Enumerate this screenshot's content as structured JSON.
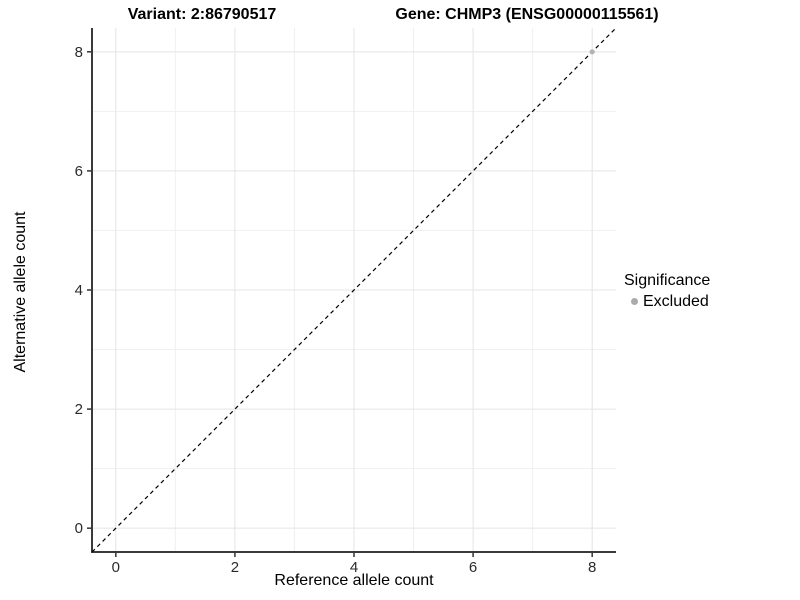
{
  "titles": {
    "variant": "Variant: 2:86790517",
    "gene": "Gene: CHMP3 (ENSG00000115561)"
  },
  "chart_data": {
    "type": "scatter",
    "title_left": "Variant: 2:86790517",
    "title_right": "Gene: CHMP3 (ENSG00000115561)",
    "xlabel": "Reference allele count",
    "ylabel": "Alternative allele count",
    "xlim": [
      -0.4,
      8.4
    ],
    "ylim": [
      -0.4,
      8.4
    ],
    "x_ticks": [
      0,
      2,
      4,
      6,
      8
    ],
    "y_ticks": [
      0,
      2,
      4,
      6,
      8
    ],
    "x_minor": [
      1,
      3,
      5,
      7
    ],
    "y_minor": [
      1,
      3,
      5,
      7
    ],
    "grid": true,
    "reference_line": {
      "kind": "abline",
      "slope": 1,
      "intercept": 0,
      "style": "dashed",
      "color": "#000000"
    },
    "series": [
      {
        "name": "Excluded",
        "color": "#b3b3b3",
        "points": [
          {
            "x": 8,
            "y": 8
          }
        ]
      }
    ],
    "legend": {
      "position": "right",
      "title": "Significance",
      "items": [
        {
          "label": "Excluded",
          "color": "#ababab"
        }
      ]
    },
    "colors": {
      "grid_major": "#e4e4e4",
      "grid_minor": "#f0f0f0",
      "axis_line": "#3a3a3a",
      "tick_mark": "#333333",
      "tick_label": "#2b2b2b",
      "abline": "#000000"
    }
  }
}
